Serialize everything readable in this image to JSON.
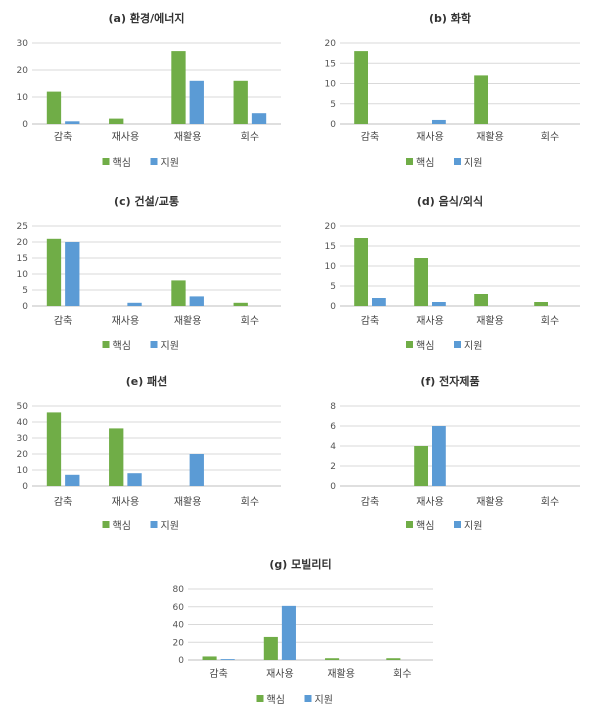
{
  "legend": {
    "core": "핵심",
    "support": "지원"
  },
  "colors": {
    "core": "#70ad47",
    "support": "#5b9bd5",
    "grid": "#d9d9d9"
  },
  "chart_data": [
    {
      "type": "bar",
      "title": "(a) 환경/에너지",
      "categories": [
        "감축",
        "재사용",
        "재활용",
        "회수"
      ],
      "series": [
        {
          "name": "핵심",
          "values": [
            12,
            2,
            27,
            16
          ]
        },
        {
          "name": "지원",
          "values": [
            1,
            0,
            16,
            4
          ]
        }
      ],
      "ylim": [
        0,
        30
      ],
      "yticks": [
        0,
        10,
        20,
        30
      ],
      "grid": true,
      "legend_position": "bottom"
    },
    {
      "type": "bar",
      "title": "(b) 화학",
      "categories": [
        "감축",
        "재사용",
        "재활용",
        "회수"
      ],
      "series": [
        {
          "name": "핵심",
          "values": [
            18,
            0,
            12,
            0
          ]
        },
        {
          "name": "지원",
          "values": [
            0,
            1,
            0,
            0
          ]
        }
      ],
      "ylim": [
        0,
        20
      ],
      "yticks": [
        0,
        5,
        10,
        15,
        20
      ],
      "grid": true,
      "legend_position": "bottom"
    },
    {
      "type": "bar",
      "title": "(c) 건설/교통",
      "categories": [
        "감축",
        "재사용",
        "재활용",
        "회수"
      ],
      "series": [
        {
          "name": "핵심",
          "values": [
            21,
            0,
            8,
            1
          ]
        },
        {
          "name": "지원",
          "values": [
            20,
            1,
            3,
            0
          ]
        }
      ],
      "ylim": [
        0,
        25
      ],
      "yticks": [
        0,
        5,
        10,
        15,
        20,
        25
      ],
      "grid": true,
      "legend_position": "bottom"
    },
    {
      "type": "bar",
      "title": "(d) 음식/외식",
      "categories": [
        "감축",
        "재사용",
        "재활용",
        "회수"
      ],
      "series": [
        {
          "name": "핵심",
          "values": [
            17,
            12,
            3,
            1
          ]
        },
        {
          "name": "지원",
          "values": [
            2,
            1,
            0,
            0
          ]
        }
      ],
      "ylim": [
        0,
        20
      ],
      "yticks": [
        0,
        5,
        10,
        15,
        20
      ],
      "grid": true,
      "legend_position": "bottom"
    },
    {
      "type": "bar",
      "title": "(e) 패션",
      "categories": [
        "감축",
        "재사용",
        "재활용",
        "회수"
      ],
      "series": [
        {
          "name": "핵심",
          "values": [
            46,
            36,
            0,
            0
          ]
        },
        {
          "name": "지원",
          "values": [
            7,
            8,
            20,
            0
          ]
        }
      ],
      "ylim": [
        0,
        50
      ],
      "yticks": [
        0,
        10,
        20,
        30,
        40,
        50
      ],
      "grid": true,
      "legend_position": "bottom"
    },
    {
      "type": "bar",
      "title": "(f) 전자제품",
      "categories": [
        "감축",
        "재사용",
        "재활용",
        "회수"
      ],
      "series": [
        {
          "name": "핵심",
          "values": [
            0,
            4,
            0,
            0
          ]
        },
        {
          "name": "지원",
          "values": [
            0,
            6,
            0,
            0
          ]
        }
      ],
      "ylim": [
        0,
        8
      ],
      "yticks": [
        0,
        2,
        4,
        6,
        8
      ],
      "grid": true,
      "legend_position": "bottom"
    },
    {
      "type": "bar",
      "title": "(g) 모빌리티",
      "categories": [
        "감축",
        "재사용",
        "재활용",
        "회수"
      ],
      "series": [
        {
          "name": "핵심",
          "values": [
            4,
            26,
            2,
            2
          ]
        },
        {
          "name": "지원",
          "values": [
            1,
            61,
            0,
            0
          ]
        }
      ],
      "ylim": [
        0,
        80
      ],
      "yticks": [
        0,
        20,
        40,
        60,
        80
      ],
      "grid": true,
      "legend_position": "bottom"
    }
  ]
}
